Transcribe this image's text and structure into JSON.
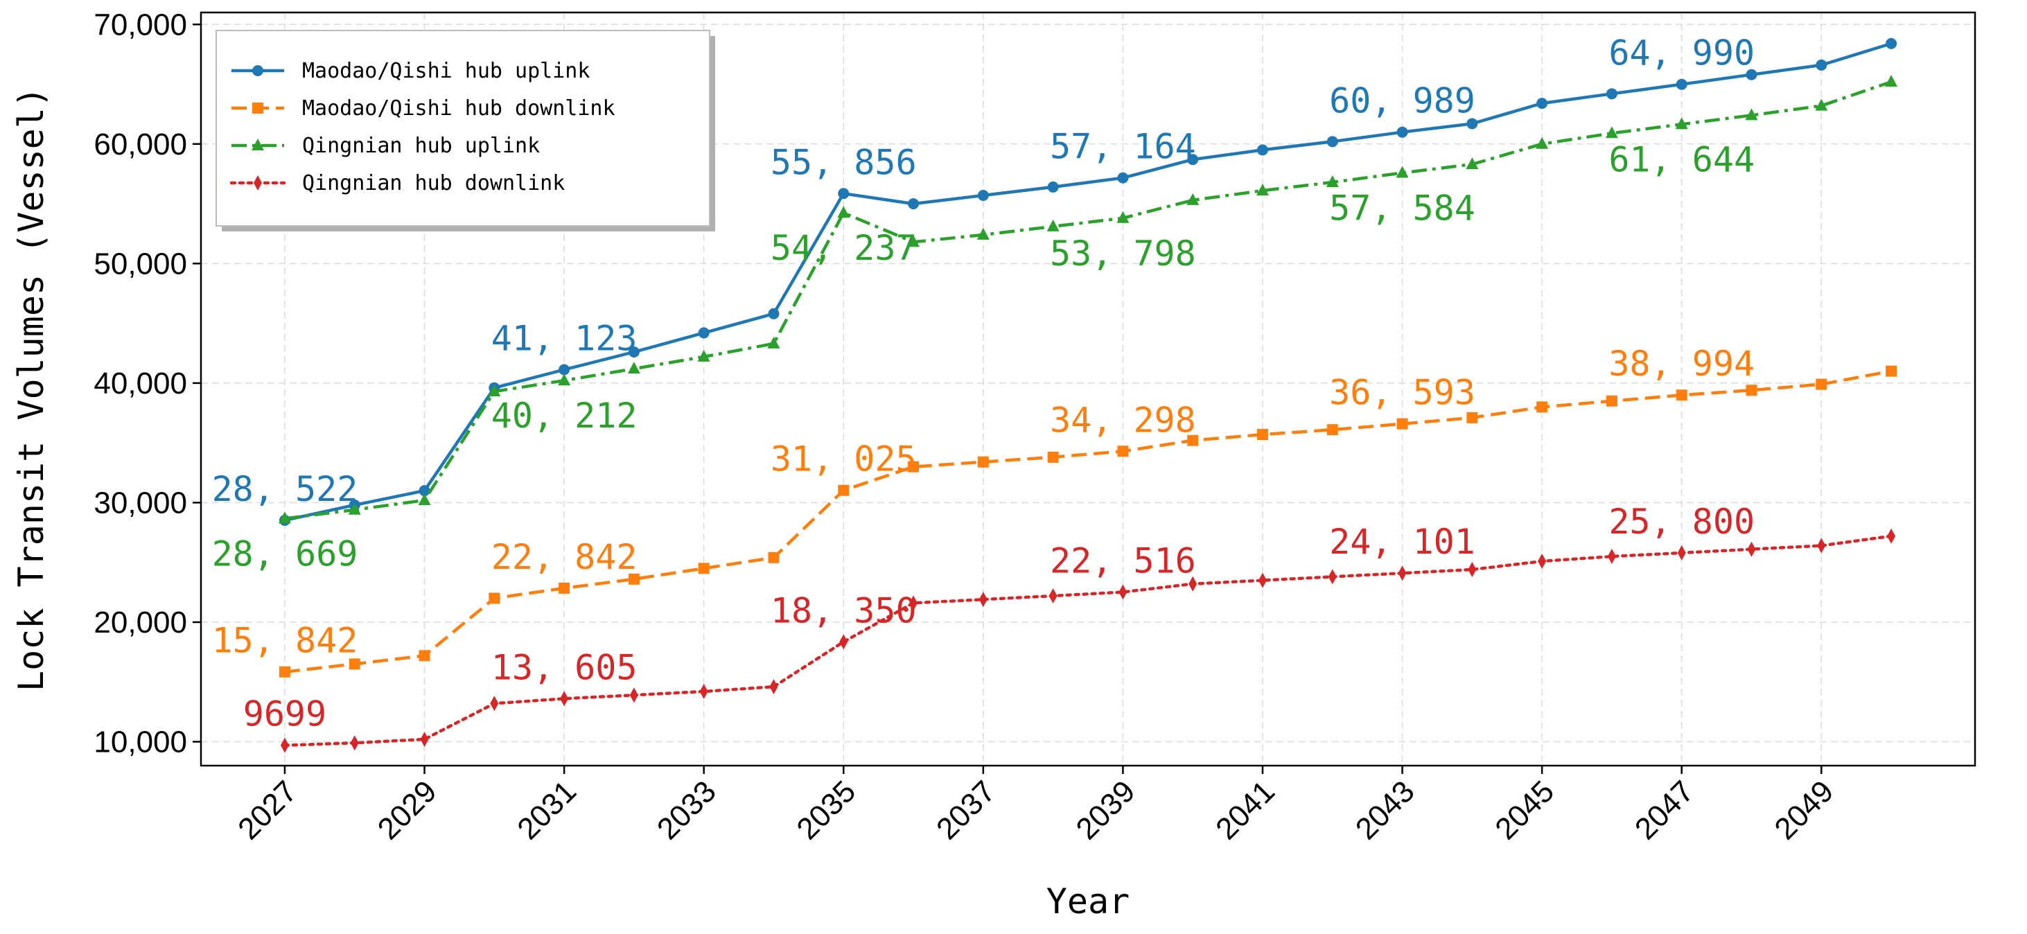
{
  "chart_data": {
    "type": "line",
    "title": "",
    "xlabel": "Year",
    "ylabel": "Lock Transit Volumes (Vessel)",
    "x": [
      2027,
      2028,
      2029,
      2030,
      2031,
      2032,
      2033,
      2034,
      2035,
      2036,
      2037,
      2038,
      2039,
      2040,
      2041,
      2042,
      2043,
      2044,
      2045,
      2046,
      2047,
      2048,
      2049,
      2050
    ],
    "xticks": [
      2027,
      2029,
      2031,
      2033,
      2035,
      2037,
      2039,
      2041,
      2043,
      2045,
      2047,
      2049
    ],
    "xtick_labels": [
      "2027",
      "2029",
      "2031",
      "2033",
      "2035",
      "2037",
      "2039",
      "2041",
      "2043",
      "2045",
      "2047",
      "2049"
    ],
    "xlim": [
      2025.8,
      2051.2
    ],
    "ylim": [
      8000,
      71000
    ],
    "yticks": [
      10000,
      20000,
      30000,
      40000,
      50000,
      60000,
      70000
    ],
    "ytick_labels": [
      "10,000",
      "20,000",
      "30,000",
      "40,000",
      "50,000",
      "60,000",
      "70,000"
    ],
    "grid": true,
    "legend_position": "top-left",
    "series": [
      {
        "name": "Maodao/Qishi hub uplink",
        "color": "#1f77b4",
        "marker": "circle",
        "linestyle": "solid",
        "values": [
          28522,
          29800,
          31000,
          39600,
          41123,
          42600,
          44200,
          45800,
          55856,
          55000,
          55700,
          56400,
          57164,
          58700,
          59500,
          60200,
          60989,
          61700,
          63400,
          64200,
          64990,
          65800,
          66600,
          68400
        ],
        "labels": [
          {
            "x": 2027,
            "text": "28, 522",
            "pos": "above"
          },
          {
            "x": 2031,
            "text": "41, 123",
            "pos": "above"
          },
          {
            "x": 2035,
            "text": "55, 856",
            "pos": "above"
          },
          {
            "x": 2039,
            "text": "57, 164",
            "pos": "above"
          },
          {
            "x": 2043,
            "text": "60, 989",
            "pos": "above"
          },
          {
            "x": 2047,
            "text": "64, 990",
            "pos": "above"
          }
        ]
      },
      {
        "name": "Maodao/Qishi hub downlink",
        "color": "#ff7f0e",
        "marker": "square",
        "linestyle": "dashed",
        "values": [
          15842,
          16500,
          17200,
          22000,
          22842,
          23600,
          24500,
          25400,
          31025,
          33000,
          33400,
          33800,
          34298,
          35200,
          35700,
          36100,
          36593,
          37100,
          38000,
          38500,
          38994,
          39400,
          39900,
          41000
        ],
        "labels": [
          {
            "x": 2027,
            "text": "15, 842",
            "pos": "above"
          },
          {
            "x": 2031,
            "text": "22, 842",
            "pos": "above"
          },
          {
            "x": 2035,
            "text": "31, 025",
            "pos": "above"
          },
          {
            "x": 2039,
            "text": "34, 298",
            "pos": "above"
          },
          {
            "x": 2043,
            "text": "36, 593",
            "pos": "above"
          },
          {
            "x": 2047,
            "text": "38, 994",
            "pos": "above"
          }
        ]
      },
      {
        "name": "Qingnian hub uplink",
        "color": "#2ca02c",
        "marker": "triangle",
        "linestyle": "dashdot",
        "values": [
          28669,
          29400,
          30200,
          39300,
          40212,
          41200,
          42200,
          43300,
          54237,
          51800,
          52400,
          53100,
          53798,
          55300,
          56100,
          56800,
          57584,
          58300,
          60000,
          60900,
          61644,
          62400,
          63200,
          65200
        ],
        "labels": [
          {
            "x": 2027,
            "text": "28, 669",
            "pos": "below"
          },
          {
            "x": 2031,
            "text": "40, 212",
            "pos": "below"
          },
          {
            "x": 2035,
            "text": "54, 237",
            "pos": "below"
          },
          {
            "x": 2039,
            "text": "53, 798",
            "pos": "below"
          },
          {
            "x": 2043,
            "text": "57, 584",
            "pos": "below"
          },
          {
            "x": 2047,
            "text": "61, 644",
            "pos": "below"
          }
        ]
      },
      {
        "name": "Qingnian hub downlink",
        "color": "#d62728",
        "marker": "diamond",
        "linestyle": "dotted",
        "values": [
          9699,
          9900,
          10200,
          13200,
          13605,
          13900,
          14200,
          14600,
          18350,
          21600,
          21900,
          22200,
          22516,
          23200,
          23500,
          23800,
          24101,
          24400,
          25100,
          25500,
          25800,
          26100,
          26400,
          27200
        ],
        "labels": [
          {
            "x": 2027,
            "text": "9699",
            "pos": "above"
          },
          {
            "x": 2031,
            "text": "13, 605",
            "pos": "above"
          },
          {
            "x": 2035,
            "text": "18, 350",
            "pos": "above"
          },
          {
            "x": 2039,
            "text": "22, 516",
            "pos": "above"
          },
          {
            "x": 2043,
            "text": "24, 101",
            "pos": "above"
          },
          {
            "x": 2047,
            "text": "25, 800",
            "pos": "above"
          }
        ]
      }
    ]
  }
}
